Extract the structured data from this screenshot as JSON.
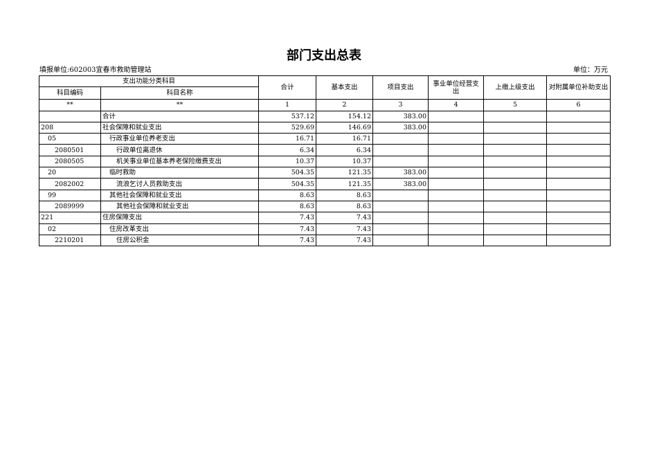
{
  "title": "部门支出总表",
  "filing_unit": "填报单位:602003宜春市救助管理站",
  "unit": "单位：万元",
  "header": {
    "group": "支出功能分类科目",
    "code": "科目编码",
    "name": "科目名称",
    "cols": [
      "合计",
      "基本支出",
      "项目支出",
      "事业单位经营支出",
      "上缴上级支出",
      "对附属单位补助支出"
    ],
    "index_row": [
      "**",
      "**",
      "1",
      "2",
      "3",
      "4",
      "5",
      "6"
    ]
  },
  "rows": [
    {
      "code": "",
      "name": "合计",
      "level": 1,
      "values": [
        "537.12",
        "154.12",
        "383.00",
        "",
        "",
        ""
      ]
    },
    {
      "code": "208",
      "name": "社会保障和就业支出",
      "level": 1,
      "values": [
        "529.69",
        "146.69",
        "383.00",
        "",
        "",
        ""
      ]
    },
    {
      "code": "05",
      "name": "行政事业单位养老支出",
      "level": 2,
      "values": [
        "16.71",
        "16.71",
        "",
        "",
        "",
        ""
      ]
    },
    {
      "code": "2080501",
      "name": "行政单位离退休",
      "level": 3,
      "values": [
        "6.34",
        "6.34",
        "",
        "",
        "",
        ""
      ]
    },
    {
      "code": "2080505",
      "name": "机关事业单位基本养老保险缴费支出",
      "level": 3,
      "values": [
        "10.37",
        "10.37",
        "",
        "",
        "",
        ""
      ]
    },
    {
      "code": "20",
      "name": "临时救助",
      "level": 2,
      "values": [
        "504.35",
        "121.35",
        "383.00",
        "",
        "",
        ""
      ]
    },
    {
      "code": "2082002",
      "name": "流浪乞讨人员救助支出",
      "level": 3,
      "values": [
        "504.35",
        "121.35",
        "383.00",
        "",
        "",
        ""
      ]
    },
    {
      "code": "99",
      "name": "其他社会保障和就业支出",
      "level": 2,
      "values": [
        "8.63",
        "8.63",
        "",
        "",
        "",
        ""
      ]
    },
    {
      "code": "2089999",
      "name": "其他社会保障和就业支出",
      "level": 3,
      "values": [
        "8.63",
        "8.63",
        "",
        "",
        "",
        ""
      ]
    },
    {
      "code": "221",
      "name": "住房保障支出",
      "level": 1,
      "values": [
        "7.43",
        "7.43",
        "",
        "",
        "",
        ""
      ]
    },
    {
      "code": "02",
      "name": "住房改革支出",
      "level": 2,
      "values": [
        "7.43",
        "7.43",
        "",
        "",
        "",
        ""
      ]
    },
    {
      "code": "2210201",
      "name": "住房公积金",
      "level": 3,
      "values": [
        "7.43",
        "7.43",
        "",
        "",
        "",
        ""
      ]
    }
  ]
}
